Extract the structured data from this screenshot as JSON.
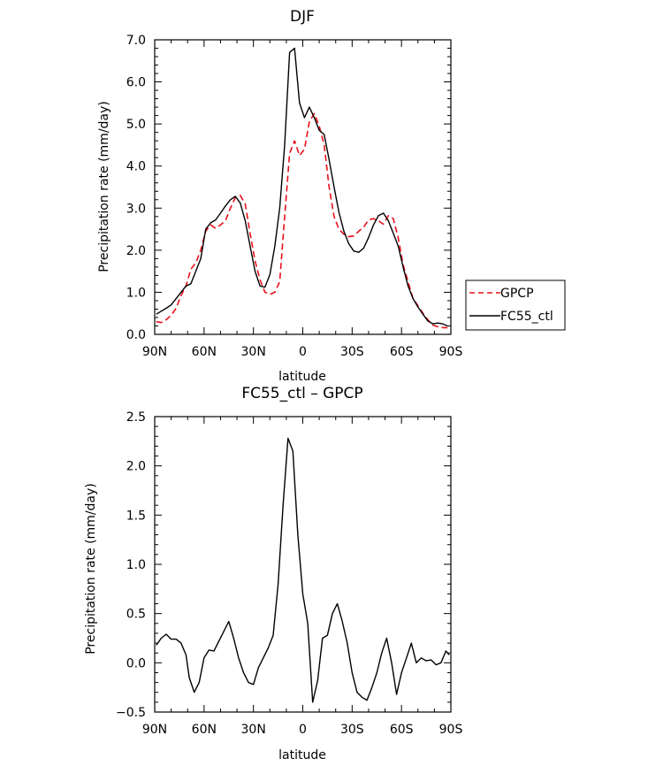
{
  "chart_data": [
    {
      "type": "line",
      "title": "DJF",
      "xlabel": "latitude",
      "ylabel": "Precipitation rate (mm/day)",
      "xticks": [
        "90N",
        "60N",
        "30N",
        "0",
        "30S",
        "60S",
        "90S"
      ],
      "xlim": [
        90,
        -90
      ],
      "ylim": [
        0,
        7
      ],
      "yticks": [
        "0.0",
        "1.0",
        "2.0",
        "3.0",
        "4.0",
        "5.0",
        "6.0",
        "7.0"
      ],
      "legend_position": "right",
      "series": [
        {
          "name": "GPCP",
          "color": "#e8101a",
          "dash": "dashed",
          "x": [
            89,
            86,
            83,
            80,
            77,
            74,
            71,
            68,
            65,
            62,
            59,
            56,
            53,
            50,
            47,
            44,
            41,
            38,
            35,
            32,
            29,
            26,
            23,
            20,
            17,
            14,
            11,
            8,
            5,
            2,
            -1,
            -4,
            -7,
            -10,
            -13,
            -16,
            -19,
            -22,
            -25,
            -28,
            -31,
            -34,
            -37,
            -40,
            -43,
            -46,
            -49,
            -52,
            -55,
            -58,
            -61,
            -64,
            -67,
            -70,
            -73,
            -76,
            -79,
            -82,
            -85,
            -88
          ],
          "y": [
            0.3,
            0.28,
            0.35,
            0.45,
            0.62,
            0.92,
            1.15,
            1.55,
            1.7,
            2.0,
            2.45,
            2.6,
            2.52,
            2.6,
            2.7,
            3.0,
            3.25,
            3.3,
            3.1,
            2.4,
            1.75,
            1.3,
            1.0,
            0.95,
            1.0,
            1.25,
            2.8,
            4.3,
            4.6,
            4.25,
            4.4,
            5.05,
            5.25,
            4.95,
            4.5,
            3.5,
            2.8,
            2.5,
            2.38,
            2.32,
            2.34,
            2.45,
            2.55,
            2.72,
            2.75,
            2.7,
            2.62,
            2.82,
            2.75,
            2.3,
            1.65,
            1.25,
            0.85,
            0.68,
            0.5,
            0.35,
            0.22,
            0.18,
            0.16,
            0.16
          ]
        },
        {
          "name": "FC55_ctl",
          "color": "#000000",
          "dash": "solid",
          "x": [
            89,
            86,
            83,
            80,
            77,
            74,
            71,
            68,
            65,
            62,
            59,
            56,
            53,
            50,
            47,
            44,
            41,
            38,
            35,
            32,
            29,
            26,
            23,
            20,
            17,
            14,
            11,
            8,
            5,
            2,
            -1,
            -4,
            -7,
            -10,
            -13,
            -16,
            -19,
            -22,
            -25,
            -28,
            -31,
            -34,
            -37,
            -40,
            -43,
            -46,
            -49,
            -52,
            -55,
            -58,
            -61,
            -64,
            -67,
            -70,
            -73,
            -76,
            -79,
            -82,
            -85,
            -88
          ],
          "y": [
            0.48,
            0.55,
            0.62,
            0.7,
            0.85,
            1.0,
            1.15,
            1.2,
            1.5,
            1.8,
            2.5,
            2.65,
            2.72,
            2.88,
            3.05,
            3.2,
            3.28,
            3.12,
            2.7,
            2.1,
            1.5,
            1.15,
            1.12,
            1.42,
            2.1,
            3.0,
            4.5,
            6.7,
            6.8,
            5.5,
            5.15,
            5.4,
            5.15,
            4.85,
            4.75,
            4.15,
            3.5,
            2.9,
            2.45,
            2.15,
            1.98,
            1.95,
            2.05,
            2.3,
            2.6,
            2.82,
            2.88,
            2.7,
            2.4,
            2.1,
            1.6,
            1.15,
            0.85,
            0.65,
            0.48,
            0.32,
            0.25,
            0.27,
            0.25,
            0.2
          ]
        }
      ]
    },
    {
      "type": "line",
      "title": "FC55_ctl – GPCP",
      "xlabel": "latitude",
      "ylabel": "Precipitation rate (mm/day)",
      "xticks": [
        "90N",
        "60N",
        "30N",
        "0",
        "30S",
        "60S",
        "90S"
      ],
      "xlim": [
        90,
        -90
      ],
      "ylim": [
        -0.5,
        2.5
      ],
      "yticks": [
        "−0.5",
        "0.0",
        "0.5",
        "1.0",
        "1.5",
        "2.0",
        "2.5"
      ],
      "series": [
        {
          "color": "#000000",
          "dash": "solid",
          "x": [
            89,
            86,
            83,
            80,
            77,
            74,
            71,
            69,
            66,
            63,
            60,
            57,
            54,
            51,
            48,
            45,
            42,
            39,
            36,
            33,
            30,
            27,
            24,
            21,
            18,
            15,
            12,
            9,
            6,
            3,
            0,
            -3,
            -6,
            -9,
            -12,
            -15,
            -18,
            -21,
            -24,
            -27,
            -30,
            -33,
            -36,
            -39,
            -42,
            -45,
            -48,
            -51,
            -54,
            -57,
            -60,
            -63,
            -66,
            -69,
            -72,
            -75,
            -78,
            -81,
            -84,
            -87,
            -89
          ],
          "y": [
            0.18,
            0.25,
            0.29,
            0.24,
            0.24,
            0.2,
            0.08,
            -0.15,
            -0.3,
            -0.2,
            0.05,
            0.13,
            0.12,
            0.22,
            0.32,
            0.42,
            0.25,
            0.05,
            -0.1,
            -0.2,
            -0.22,
            -0.05,
            0.05,
            0.15,
            0.28,
            0.8,
            1.6,
            2.28,
            2.15,
            1.3,
            0.7,
            0.4,
            -0.4,
            -0.18,
            0.25,
            0.28,
            0.5,
            0.6,
            0.42,
            0.2,
            -0.1,
            -0.3,
            -0.35,
            -0.38,
            -0.25,
            -0.1,
            0.1,
            0.25,
            0.0,
            -0.32,
            -0.1,
            0.05,
            0.2,
            0.0,
            0.05,
            0.02,
            0.03,
            -0.02,
            0.0,
            0.12,
            0.08
          ]
        }
      ]
    }
  ]
}
